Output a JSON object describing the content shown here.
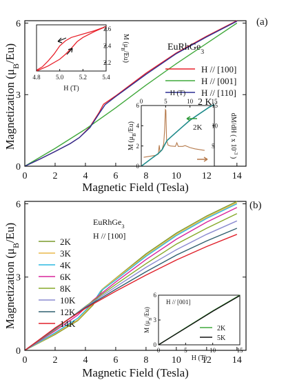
{
  "chart_data": [
    {
      "panel": "(a)",
      "type": "line",
      "compound": "EuRhGe3",
      "temperature_label": "2 K",
      "xlabel": "Magnetic Field (Tesla)",
      "ylabel": "Magnetization (μB/Eu)",
      "xlim": [
        0,
        14.6
      ],
      "ylim": [
        0,
        6.1
      ],
      "xticks": [
        "0",
        "2",
        "4",
        "6",
        "8",
        "10",
        "12",
        "14"
      ],
      "yticks": [
        "0",
        "3",
        "6"
      ],
      "legend_position": "center-right",
      "series": [
        {
          "name": "H // [100]",
          "color": "#e8202a",
          "points": [
            [
              0,
              0
            ],
            [
              1,
              0.3
            ],
            [
              2,
              0.62
            ],
            [
              3,
              0.95
            ],
            [
              3.6,
              1.2
            ],
            [
              4.3,
              1.65
            ],
            [
              4.9,
              2.25
            ],
            [
              5.2,
              2.6
            ],
            [
              6,
              2.95
            ],
            [
              8,
              3.9
            ],
            [
              10,
              4.75
            ],
            [
              12,
              5.45
            ],
            [
              14,
              6.1
            ]
          ]
        },
        {
          "name": "H // [001]",
          "color": "#3fa83a",
          "points": [
            [
              0,
              0
            ],
            [
              2,
              0.75
            ],
            [
              4,
              1.55
            ],
            [
              6,
              2.45
            ],
            [
              8,
              3.4
            ],
            [
              10,
              4.3
            ],
            [
              12,
              5.15
            ],
            [
              14,
              6.0
            ]
          ]
        },
        {
          "name": "H // [110]",
          "color": "#2b2f93",
          "points": [
            [
              0,
              0
            ],
            [
              1,
              0.3
            ],
            [
              2,
              0.62
            ],
            [
              3,
              0.95
            ],
            [
              3.6,
              1.2
            ],
            [
              4.3,
              1.62
            ],
            [
              4.9,
              2.2
            ],
            [
              5.3,
              2.58
            ],
            [
              6,
              2.92
            ],
            [
              8,
              3.85
            ],
            [
              10,
              4.72
            ],
            [
              12,
              5.42
            ],
            [
              14,
              6.08
            ]
          ]
        }
      ],
      "inset_top": {
        "xlabel": "H (T)",
        "ylabel": "M (μB/Eu)",
        "xlim": [
          4.8,
          5.4
        ],
        "ylim": [
          2.1,
          2.65
        ],
        "xticks": [
          "4.8",
          "5.0",
          "5.2",
          "5.4"
        ],
        "yticks": [
          "2.2",
          "2.4",
          "2.6"
        ],
        "up_sweep": [
          [
            4.8,
            2.1
          ],
          [
            4.9,
            2.16
          ],
          [
            5.0,
            2.24
          ],
          [
            5.05,
            2.3
          ],
          [
            5.1,
            2.37
          ],
          [
            5.15,
            2.45
          ],
          [
            5.2,
            2.5
          ],
          [
            5.3,
            2.57
          ],
          [
            5.4,
            2.63
          ]
        ],
        "down_sweep": [
          [
            4.8,
            2.11
          ],
          [
            4.85,
            2.15
          ],
          [
            4.9,
            2.22
          ],
          [
            4.95,
            2.3
          ],
          [
            5.0,
            2.4
          ],
          [
            5.05,
            2.46
          ],
          [
            5.1,
            2.5
          ],
          [
            5.2,
            2.54
          ],
          [
            5.3,
            2.58
          ],
          [
            5.4,
            2.63
          ]
        ]
      },
      "inset_right": {
        "xlabel": "H (T)",
        "ylabel_left": "M (μB/Eu)",
        "ylabel_right": "dM/dH ( x 10-3 )",
        "label": "2K",
        "xlim": [
          0,
          15
        ],
        "ylim_left": [
          0,
          6
        ],
        "ylim_right": [
          0,
          15
        ],
        "xticks": [
          "0",
          "5",
          "10",
          "15"
        ],
        "yticks_left": [
          "0",
          "2",
          "4",
          "6"
        ],
        "yticks_right": [
          "5",
          "10",
          "15"
        ],
        "magnetization": [
          [
            0,
            0
          ],
          [
            2,
            0.72
          ],
          [
            3.5,
            1.25
          ],
          [
            4.3,
            1.65
          ],
          [
            4.9,
            2.2
          ],
          [
            5.3,
            2.55
          ],
          [
            6,
            2.85
          ],
          [
            8,
            3.7
          ],
          [
            10,
            4.55
          ],
          [
            12,
            5.2
          ],
          [
            14,
            5.85
          ],
          [
            15,
            6.1
          ]
        ],
        "derivative": [
          [
            0.5,
            2.2
          ],
          [
            2,
            2.5
          ],
          [
            3,
            2.7
          ],
          [
            3.5,
            3.0
          ],
          [
            3.7,
            5.2
          ],
          [
            3.85,
            3.5
          ],
          [
            4.2,
            3.9
          ],
          [
            4.6,
            5.5
          ],
          [
            4.8,
            9.0
          ],
          [
            4.95,
            14.0
          ],
          [
            5.05,
            13.8
          ],
          [
            5.2,
            6.5
          ],
          [
            5.5,
            5.2
          ],
          [
            6,
            5.0
          ],
          [
            7,
            4.9
          ],
          [
            7.3,
            5.8
          ],
          [
            7.6,
            4.9
          ],
          [
            8.5,
            4.9
          ],
          [
            9,
            5.1
          ],
          [
            10,
            4.6
          ],
          [
            11,
            4.3
          ],
          [
            12,
            4.1
          ],
          [
            13,
            3.9
          ]
        ]
      }
    },
    {
      "panel": "(b)",
      "type": "line",
      "compound": "EuRhGe3",
      "field_direction": "H // [100]",
      "xlabel": "Magnetic Field (Tesla)",
      "ylabel": "Magnetization (μB/Eu)",
      "xlim": [
        0,
        14.6
      ],
      "ylim": [
        0,
        6.1
      ],
      "xticks": [
        "0",
        "2",
        "4",
        "6",
        "8",
        "10",
        "12",
        "14"
      ],
      "yticks": [
        "0",
        "3",
        "6"
      ],
      "legend_position": "top-left",
      "series": [
        {
          "name": "2K",
          "color": "#7a9a2a",
          "points": [
            [
              0,
              0
            ],
            [
              2,
              0.65
            ],
            [
              3.5,
              1.22
            ],
            [
              4.5,
              1.85
            ],
            [
              5.2,
              2.55
            ],
            [
              6,
              2.95
            ],
            [
              8,
              3.95
            ],
            [
              10,
              4.8
            ],
            [
              12,
              5.5
            ],
            [
              14,
              6.1
            ]
          ]
        },
        {
          "name": "3K",
          "color": "#e8b84a",
          "points": [
            [
              0,
              0
            ],
            [
              2,
              0.68
            ],
            [
              3.5,
              1.25
            ],
            [
              4.5,
              1.9
            ],
            [
              5.1,
              2.5
            ],
            [
              6,
              2.93
            ],
            [
              8,
              3.9
            ],
            [
              10,
              4.75
            ],
            [
              12,
              5.45
            ],
            [
              14,
              6.05
            ]
          ]
        },
        {
          "name": "4K",
          "color": "#2ab8e0",
          "points": [
            [
              0,
              0
            ],
            [
              2,
              0.72
            ],
            [
              3.5,
              1.32
            ],
            [
              4.5,
              1.95
            ],
            [
              5,
              2.42
            ],
            [
              6,
              2.88
            ],
            [
              8,
              3.85
            ],
            [
              10,
              4.7
            ],
            [
              12,
              5.4
            ],
            [
              14,
              6.0
            ]
          ]
        },
        {
          "name": "6K",
          "color": "#d8249a",
          "points": [
            [
              0,
              0
            ],
            [
              2,
              0.8
            ],
            [
              3.5,
              1.45
            ],
            [
              4.5,
              2.05
            ],
            [
              6,
              2.8
            ],
            [
              8,
              3.72
            ],
            [
              10,
              4.55
            ],
            [
              12,
              5.25
            ],
            [
              14,
              5.85
            ]
          ]
        },
        {
          "name": "8K",
          "color": "#86a828",
          "points": [
            [
              0,
              0
            ],
            [
              2,
              0.85
            ],
            [
              4,
              1.8
            ],
            [
              6,
              2.7
            ],
            [
              8,
              3.55
            ],
            [
              10,
              4.35
            ],
            [
              12,
              5.0
            ],
            [
              14,
              5.6
            ]
          ]
        },
        {
          "name": "10K",
          "color": "#8a8ad0",
          "points": [
            [
              0,
              0
            ],
            [
              2,
              0.88
            ],
            [
              4,
              1.78
            ],
            [
              6,
              2.6
            ],
            [
              8,
              3.4
            ],
            [
              10,
              4.12
            ],
            [
              12,
              4.75
            ],
            [
              14,
              5.3
            ]
          ]
        },
        {
          "name": "12K",
          "color": "#2f5e6e",
          "points": [
            [
              0,
              0
            ],
            [
              2,
              0.9
            ],
            [
              4,
              1.75
            ],
            [
              6,
              2.5
            ],
            [
              8,
              3.22
            ],
            [
              10,
              3.9
            ],
            [
              12,
              4.48
            ],
            [
              14,
              5.0
            ]
          ]
        },
        {
          "name": "14K",
          "color": "#e0202a",
          "points": [
            [
              0,
              0
            ],
            [
              2,
              0.92
            ],
            [
              4,
              1.72
            ],
            [
              6,
              2.42
            ],
            [
              8,
              3.08
            ],
            [
              10,
              3.7
            ],
            [
              12,
              4.25
            ],
            [
              14,
              4.75
            ]
          ]
        }
      ],
      "inset": {
        "field_direction": "H // [001]",
        "xlabel": "H (T)",
        "ylabel": "M (μB/Eu)",
        "xlim": [
          0,
          15
        ],
        "ylim": [
          0,
          6
        ],
        "xticks": [
          "0",
          "5",
          "10",
          "15"
        ],
        "yticks": [
          "0",
          "3",
          "6"
        ],
        "series": [
          {
            "name": "2K",
            "color": "#3fa83a",
            "points": [
              [
                0,
                0
              ],
              [
                5,
                2.05
              ],
              [
                10,
                4.1
              ],
              [
                15,
                6.0
              ]
            ]
          },
          {
            "name": "5K",
            "color": "#111111",
            "points": [
              [
                0,
                0
              ],
              [
                5,
                2.02
              ],
              [
                10,
                4.05
              ],
              [
                15,
                5.95
              ]
            ]
          }
        ]
      }
    }
  ]
}
